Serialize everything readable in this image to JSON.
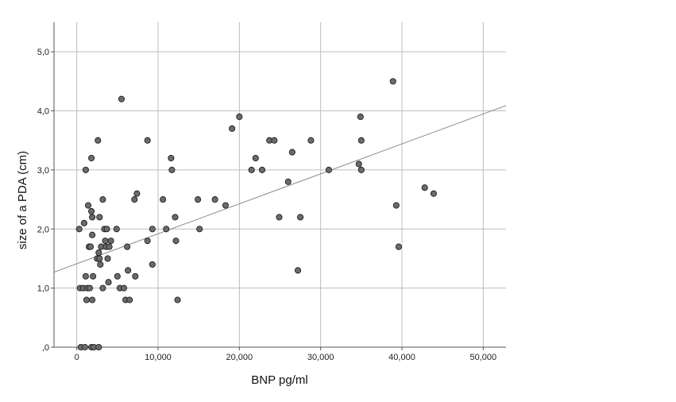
{
  "chart_data": {
    "type": "scatter",
    "title": "",
    "xlabel": "BNP pg/ml",
    "ylabel": "size of a PDA (cm)",
    "xlim": [
      -2800,
      52800
    ],
    "ylim": [
      0,
      5.5
    ],
    "x_ticks": [
      0,
      10000,
      20000,
      30000,
      40000,
      50000
    ],
    "x_tick_labels": [
      "0",
      "10,000",
      "20,000",
      "30,000",
      "40,000",
      "50,000"
    ],
    "y_ticks": [
      0,
      1,
      2,
      3,
      4,
      5
    ],
    "y_tick_labels": [
      ",0",
      "1,0",
      "2,0",
      "3,0",
      "4,0",
      "5,0"
    ],
    "grid": true,
    "legend": "none",
    "colors": {
      "point_fill": "#6b6b6b",
      "point_stroke": "#1f1f1f",
      "grid": "#bdbdbd",
      "axis": "#555555",
      "fit_line": "#8a8a8a"
    },
    "fit_line": {
      "x": [
        -2800,
        52800
      ],
      "y": [
        1.27,
        4.09
      ]
    },
    "points": [
      {
        "x": 300,
        "y": 2.0
      },
      {
        "x": 400,
        "y": 1.0
      },
      {
        "x": 500,
        "y": 0.0
      },
      {
        "x": 800,
        "y": 1.0
      },
      {
        "x": 900,
        "y": 2.1
      },
      {
        "x": 1000,
        "y": 0.0
      },
      {
        "x": 1100,
        "y": 3.0
      },
      {
        "x": 1100,
        "y": 1.2
      },
      {
        "x": 1200,
        "y": 0.8
      },
      {
        "x": 1300,
        "y": 1.0
      },
      {
        "x": 1400,
        "y": 2.4
      },
      {
        "x": 1500,
        "y": 1.7
      },
      {
        "x": 1600,
        "y": 1.0
      },
      {
        "x": 1700,
        "y": 1.7
      },
      {
        "x": 1800,
        "y": 2.3
      },
      {
        "x": 1800,
        "y": 3.2
      },
      {
        "x": 1900,
        "y": 2.2
      },
      {
        "x": 1900,
        "y": 1.9
      },
      {
        "x": 2000,
        "y": 1.2
      },
      {
        "x": 1900,
        "y": 0.8
      },
      {
        "x": 1800,
        "y": 0.0
      },
      {
        "x": 2100,
        "y": 0.0
      },
      {
        "x": 2500,
        "y": 1.5
      },
      {
        "x": 2600,
        "y": 3.5
      },
      {
        "x": 2700,
        "y": 0.0
      },
      {
        "x": 2800,
        "y": 2.2
      },
      {
        "x": 2700,
        "y": 1.6
      },
      {
        "x": 2800,
        "y": 1.5
      },
      {
        "x": 2900,
        "y": 1.4
      },
      {
        "x": 3000,
        "y": 1.7
      },
      {
        "x": 3200,
        "y": 2.5
      },
      {
        "x": 3200,
        "y": 1.0
      },
      {
        "x": 3400,
        "y": 2.0
      },
      {
        "x": 3500,
        "y": 1.8
      },
      {
        "x": 3600,
        "y": 1.7
      },
      {
        "x": 3700,
        "y": 2.0
      },
      {
        "x": 3800,
        "y": 1.5
      },
      {
        "x": 3900,
        "y": 1.1
      },
      {
        "x": 4000,
        "y": 1.7
      },
      {
        "x": 4200,
        "y": 1.8
      },
      {
        "x": 4900,
        "y": 2.0
      },
      {
        "x": 5000,
        "y": 1.2
      },
      {
        "x": 5300,
        "y": 1.0
      },
      {
        "x": 5500,
        "y": 4.2
      },
      {
        "x": 5800,
        "y": 1.0
      },
      {
        "x": 6000,
        "y": 0.8
      },
      {
        "x": 6200,
        "y": 1.7
      },
      {
        "x": 6300,
        "y": 1.3
      },
      {
        "x": 6500,
        "y": 0.8
      },
      {
        "x": 7100,
        "y": 2.5
      },
      {
        "x": 7200,
        "y": 1.2
      },
      {
        "x": 7400,
        "y": 2.6
      },
      {
        "x": 8700,
        "y": 1.8
      },
      {
        "x": 8700,
        "y": 3.5
      },
      {
        "x": 9300,
        "y": 2.0
      },
      {
        "x": 9300,
        "y": 1.4
      },
      {
        "x": 10600,
        "y": 2.5
      },
      {
        "x": 11000,
        "y": 2.0
      },
      {
        "x": 11600,
        "y": 3.2
      },
      {
        "x": 11700,
        "y": 3.0
      },
      {
        "x": 12100,
        "y": 2.2
      },
      {
        "x": 12200,
        "y": 1.8
      },
      {
        "x": 12400,
        "y": 0.8
      },
      {
        "x": 14900,
        "y": 2.5
      },
      {
        "x": 15100,
        "y": 2.0
      },
      {
        "x": 17000,
        "y": 2.5
      },
      {
        "x": 18300,
        "y": 2.4
      },
      {
        "x": 19100,
        "y": 3.7
      },
      {
        "x": 20000,
        "y": 3.9
      },
      {
        "x": 21500,
        "y": 3.0
      },
      {
        "x": 22000,
        "y": 3.2
      },
      {
        "x": 22800,
        "y": 3.0
      },
      {
        "x": 23700,
        "y": 3.5
      },
      {
        "x": 24300,
        "y": 3.5
      },
      {
        "x": 24900,
        "y": 2.2
      },
      {
        "x": 26000,
        "y": 2.8
      },
      {
        "x": 26500,
        "y": 3.3
      },
      {
        "x": 27200,
        "y": 1.3
      },
      {
        "x": 27500,
        "y": 2.2
      },
      {
        "x": 28800,
        "y": 3.5
      },
      {
        "x": 31000,
        "y": 3.0
      },
      {
        "x": 34700,
        "y": 3.1
      },
      {
        "x": 34900,
        "y": 3.9
      },
      {
        "x": 35000,
        "y": 3.5
      },
      {
        "x": 35000,
        "y": 3.0
      },
      {
        "x": 38900,
        "y": 4.5
      },
      {
        "x": 39300,
        "y": 2.4
      },
      {
        "x": 39600,
        "y": 1.7
      },
      {
        "x": 42800,
        "y": 2.7
      },
      {
        "x": 43900,
        "y": 2.6
      }
    ]
  }
}
